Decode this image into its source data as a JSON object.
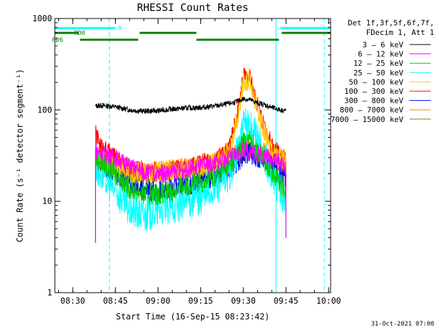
{
  "chart_data": {
    "type": "line",
    "title": "RHESSI Count Rates",
    "xlabel": "Start Time (16-Sep-15 08:23:42)",
    "ylabel": "Count Rate (s⁻¹ detector segment⁻¹)",
    "x_scale": "time",
    "y_scale": "log",
    "xlim": [
      "08:23:42",
      "10:00:42"
    ],
    "ylim": [
      1,
      1000
    ],
    "x_tick_labels": [
      "08:30",
      "08:45",
      "09:00",
      "09:15",
      "09:30",
      "09:45",
      "10:00"
    ],
    "y_tick_labels": [
      "1",
      "10",
      "100",
      "1000"
    ],
    "timestamp": "31-Oct-2021 07:00",
    "legend": {
      "position": "right",
      "header_line1": "Det 1f,3f,5f,6f,7f,",
      "header_line2": "FDecim 1, Att 1",
      "entries": [
        {
          "label": "3 – 6 keV",
          "color": "#000000"
        },
        {
          "label": "6 – 12 keV",
          "color": "#ff00ff"
        },
        {
          "label": "12 – 25 keV",
          "color": "#00cc00"
        },
        {
          "label": "25 – 50 keV",
          "color": "#00ffff"
        },
        {
          "label": "50 – 100 keV",
          "color": "#ffcc00"
        },
        {
          "label": "100 – 300 keV",
          "color": "#ff0000"
        },
        {
          "label": "300 – 800 keV",
          "color": "#0000ff"
        },
        {
          "label": "800 – 7000 keV",
          "color": "#ff8800"
        },
        {
          "label": "7000 – 15000 keV",
          "color": "#808000"
        }
      ]
    },
    "flag_bars": [
      {
        "label": "N",
        "color": "#00ffff",
        "segments": [
          [
            "08:23:42",
            "08:45:00"
          ],
          [
            "09:43:00",
            "10:00:42"
          ]
        ]
      },
      {
        "label": "RD0",
        "color": "#008000",
        "segments": [
          [
            "08:23:42",
            "08:32:00"
          ],
          [
            "08:53:30",
            "09:13:30"
          ],
          [
            "09:43:30",
            "10:00:42"
          ]
        ]
      },
      {
        "label": "RD6",
        "color": "#008000",
        "segments": [
          [
            "08:32:30",
            "08:53:00"
          ],
          [
            "09:13:30",
            "09:33:30"
          ],
          [
            "09:33:30",
            "09:42:30"
          ]
        ]
      }
    ],
    "vertical_markers": [
      {
        "time": "08:23:42",
        "color": "#00ffff",
        "style": "solid"
      },
      {
        "time": "08:42:50",
        "color": "#00ffff",
        "style": "dashed"
      },
      {
        "time": "09:41:30",
        "color": "#00ffff",
        "style": "solid"
      },
      {
        "time": "09:58:30",
        "color": "#00ffff",
        "style": "dashed"
      }
    ],
    "x": [
      "08:38",
      "08:40",
      "08:45",
      "08:50",
      "08:55",
      "09:00",
      "09:05",
      "09:10",
      "09:15",
      "09:20",
      "09:25",
      "09:28",
      "09:30",
      "09:32",
      "09:34",
      "09:37",
      "09:40",
      "09:43",
      "09:45"
    ],
    "series": [
      {
        "name": "3 – 6 keV",
        "color": "#000000",
        "values": [
          110,
          112,
          108,
          100,
          97,
          98,
          102,
          105,
          106,
          110,
          117,
          124,
          132,
          130,
          122,
          115,
          106,
          100,
          98
        ]
      },
      {
        "name": "6 – 12 keV",
        "color": "#ff00ff",
        "values": [
          36,
          34,
          30,
          24,
          21,
          20,
          21,
          22,
          24,
          26,
          30,
          34,
          37,
          36,
          34,
          32,
          30,
          26,
          24
        ]
      },
      {
        "name": "12 – 25 keV",
        "color": "#00cc00",
        "values": [
          30,
          27,
          20,
          14,
          12,
          12,
          13,
          15,
          16,
          19,
          24,
          32,
          45,
          48,
          40,
          30,
          22,
          16,
          13
        ]
      },
      {
        "name": "25 – 50 keV",
        "color": "#00ffff",
        "values": [
          24,
          20,
          13,
          8,
          7,
          8,
          9,
          10,
          11,
          14,
          20,
          36,
          65,
          72,
          55,
          32,
          20,
          13,
          10
        ]
      },
      {
        "name": "50 – 100 keV",
        "color": "#ffcc00",
        "values": [
          30,
          28,
          24,
          21,
          20,
          21,
          22,
          23,
          24,
          26,
          34,
          80,
          200,
          220,
          130,
          60,
          38,
          30,
          28
        ]
      },
      {
        "name": "100 – 300 keV",
        "color": "#ff0000",
        "values": [
          55,
          40,
          30,
          24,
          22,
          22,
          23,
          24,
          26,
          28,
          38,
          95,
          230,
          240,
          150,
          70,
          42,
          32,
          28
        ]
      },
      {
        "name": "300 – 800 keV",
        "color": "#0000ff",
        "values": [
          27,
          25,
          20,
          15,
          13,
          13,
          14,
          15,
          16,
          18,
          22,
          27,
          33,
          34,
          32,
          28,
          24,
          20,
          17
        ]
      },
      {
        "name": "800 – 7000 keV",
        "color": "#ff8800",
        "values": [
          32,
          30,
          26,
          22,
          21,
          22,
          23,
          24,
          26,
          28,
          32,
          36,
          42,
          43,
          40,
          36,
          32,
          29,
          27
        ]
      },
      {
        "name": "7000 – 15000 keV",
        "color": "#808000",
        "values": [
          28,
          26,
          23,
          20,
          19,
          19,
          20,
          21,
          22,
          24,
          27,
          30,
          34,
          35,
          33,
          30,
          27,
          24,
          22
        ]
      }
    ],
    "grid": false
  }
}
